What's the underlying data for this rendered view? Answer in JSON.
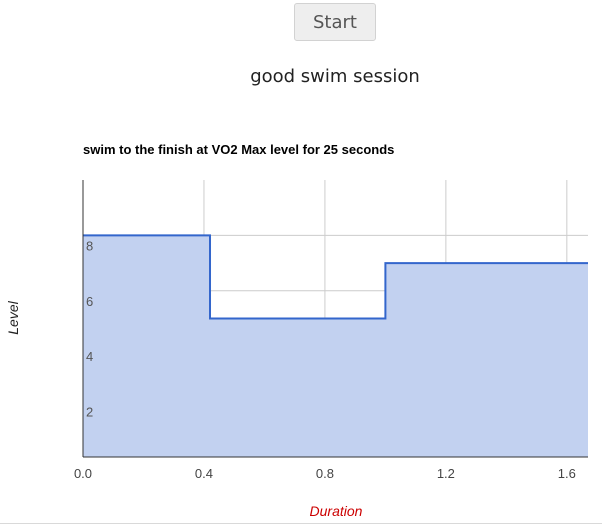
{
  "controls": {
    "start_label": "Start"
  },
  "session": {
    "title": "good swim session"
  },
  "chart_data": {
    "type": "area",
    "step": true,
    "title": "swim to the finish at VO2 Max level for 25 seconds",
    "xlabel": "Duration",
    "ylabel": "Level",
    "xlim": [
      0,
      1.67
    ],
    "ylim": [
      0,
      10
    ],
    "x_ticks": [
      0.0,
      0.4,
      0.8,
      1.2,
      1.6
    ],
    "x_tick_labels": [
      "0.0",
      "0.4",
      "0.8",
      "1.2",
      "1.6"
    ],
    "y_ticks": [
      2,
      4,
      6,
      8
    ],
    "y_tick_labels": [
      "2",
      "4",
      "6",
      "8"
    ],
    "grid": true,
    "series": [
      {
        "segments": [
          {
            "x_start": 0.0,
            "x_end": 0.42,
            "y": 8
          },
          {
            "x_start": 0.42,
            "x_end": 1.0,
            "y": 5
          },
          {
            "x_start": 1.0,
            "x_end": 1.67,
            "y": 7
          }
        ]
      }
    ],
    "colors": {
      "fill": "#c2d1f0",
      "line": "#3366cc",
      "grid": "#cccccc",
      "axis": "#333333",
      "xlabel": "#cc0000"
    }
  }
}
